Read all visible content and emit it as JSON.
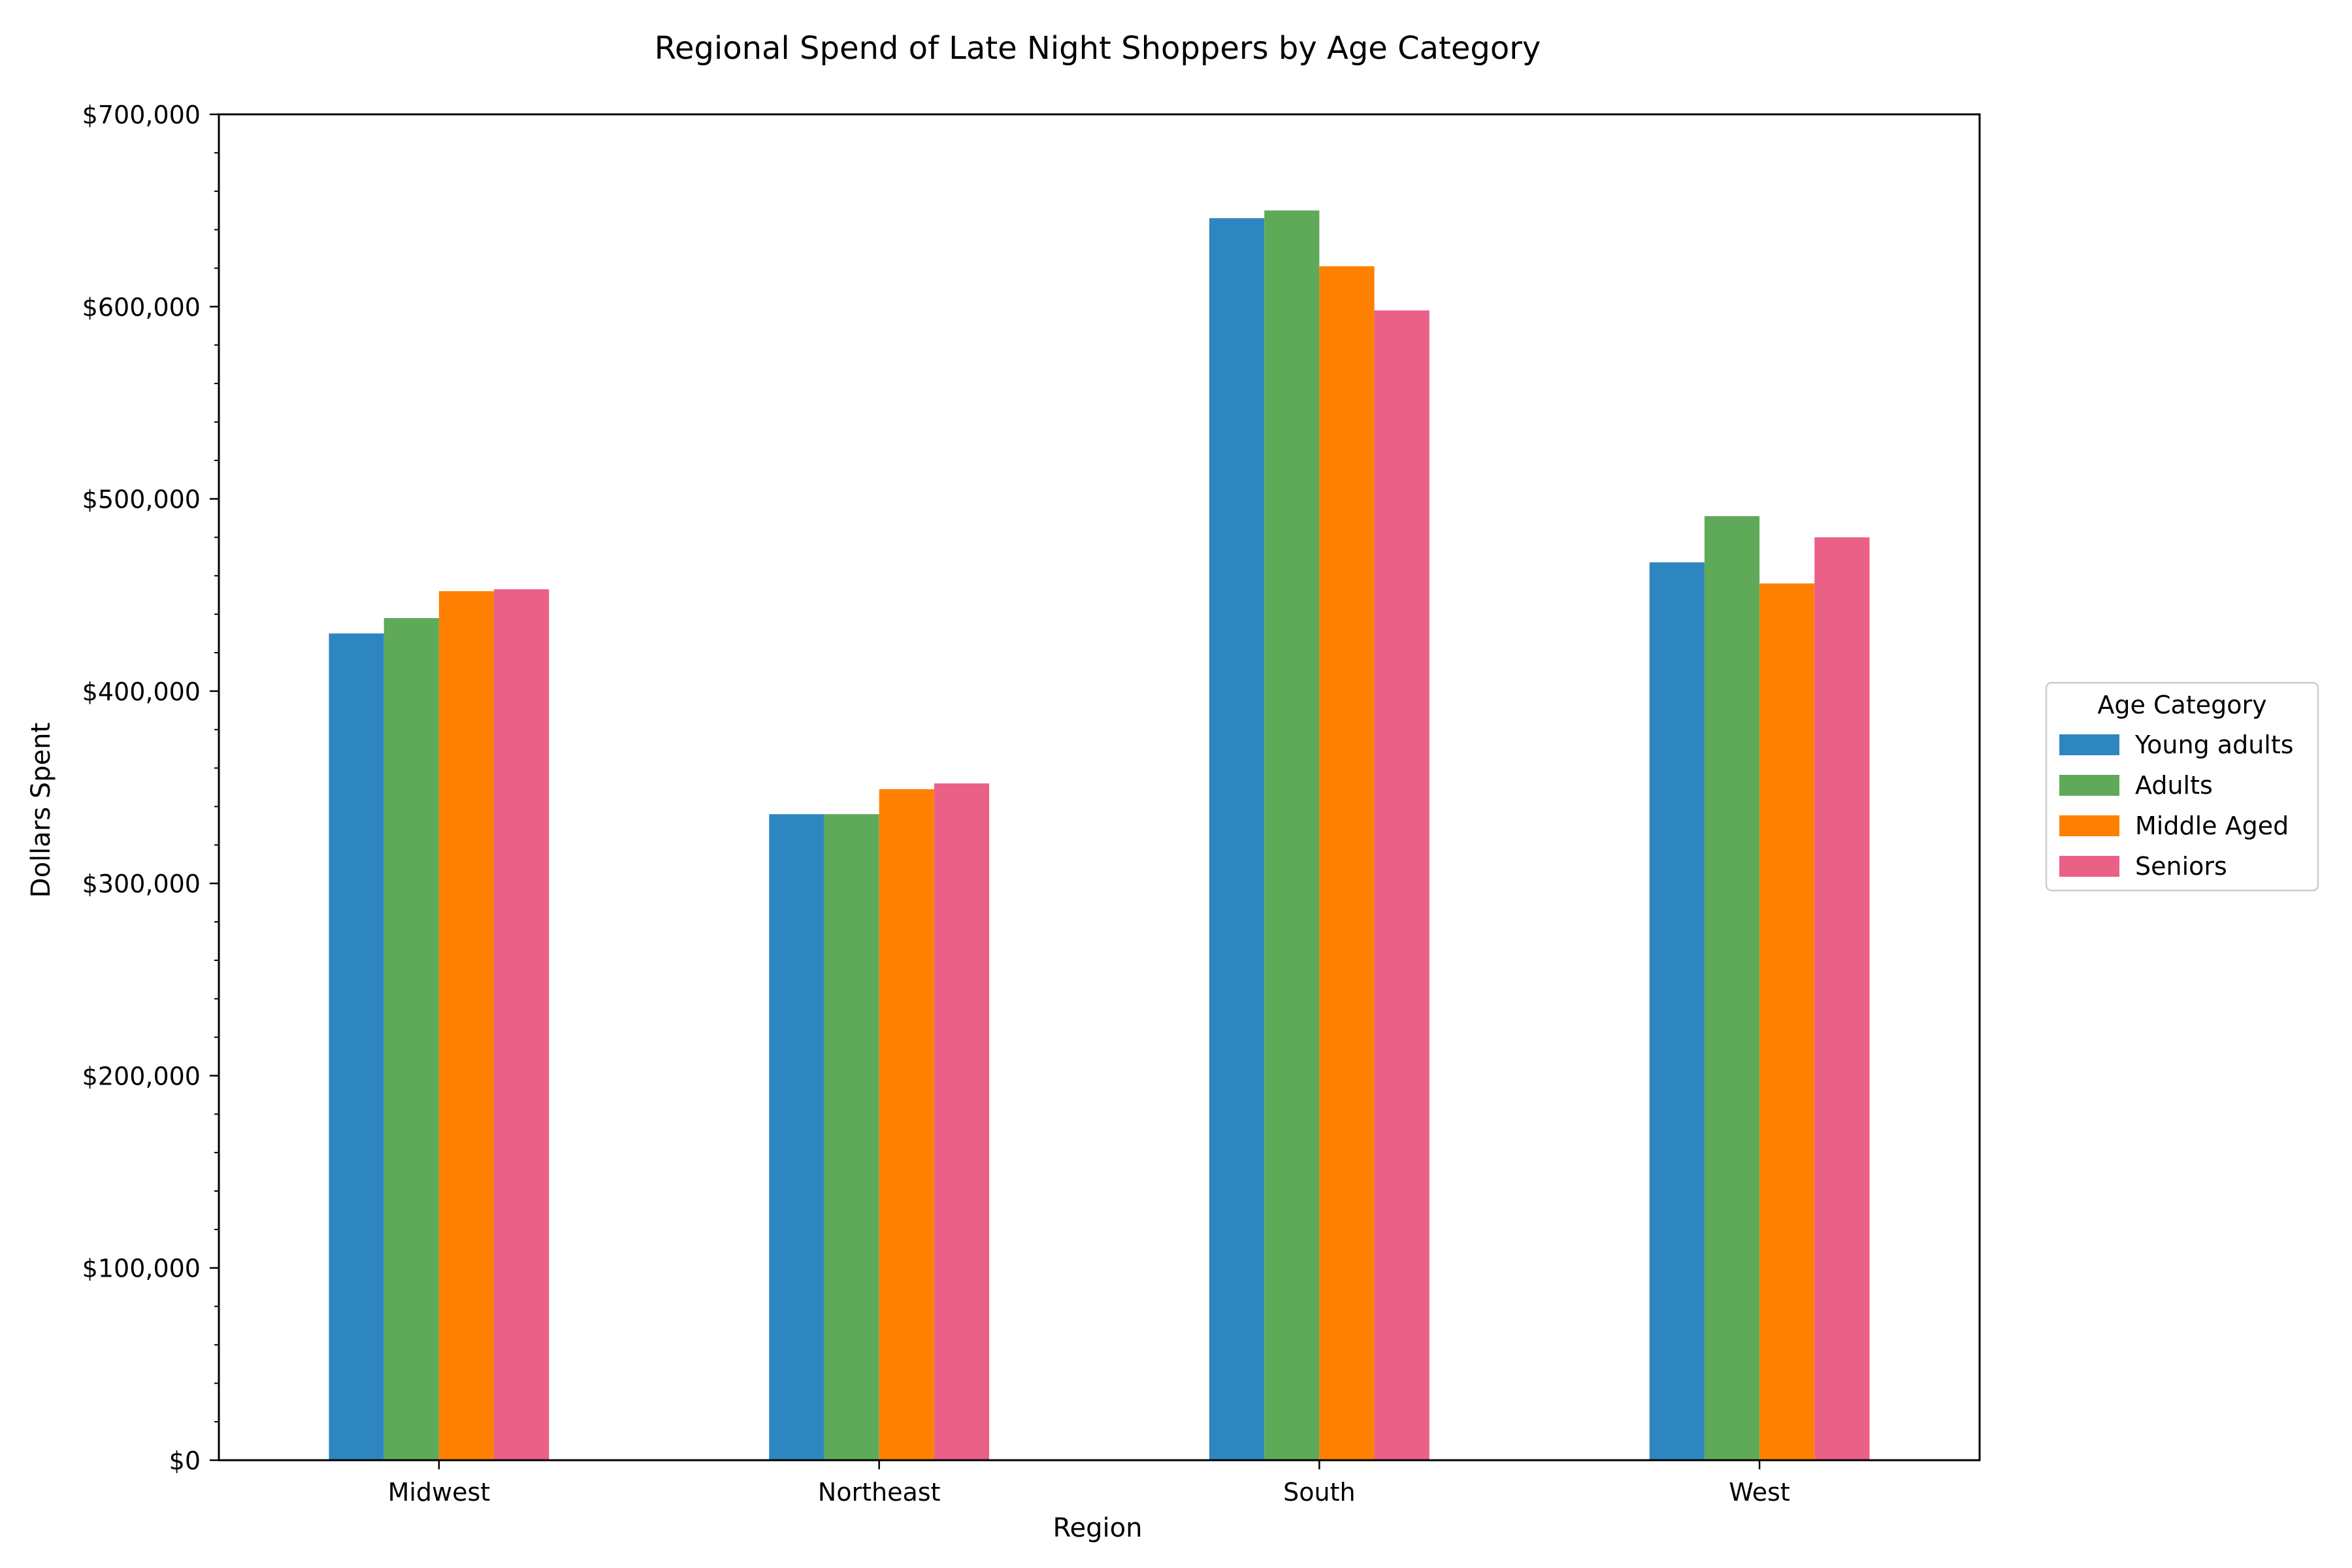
{
  "chart_data": {
    "type": "bar",
    "title": "Regional Spend of Late Night Shoppers by Age Category",
    "xlabel": "Region",
    "ylabel": "Dollars Spent",
    "categories": [
      "Midwest",
      "Northeast",
      "South",
      "West"
    ],
    "ylim": [
      0,
      700000
    ],
    "y_ticks": [
      0,
      100000,
      200000,
      300000,
      400000,
      500000,
      600000,
      700000
    ],
    "y_tick_labels": [
      "$0",
      "$100,000",
      "$200,000",
      "$300,000",
      "$400,000",
      "$500,000",
      "$600,000",
      "$700,000"
    ],
    "grid": false,
    "legend": {
      "title": "Age Category",
      "placement": "right"
    },
    "series": [
      {
        "name": "Young adults",
        "color": "#2e86c1",
        "values": [
          430000,
          336000,
          646000,
          467000
        ]
      },
      {
        "name": "Adults",
        "color": "#5faa58",
        "values": [
          438000,
          336000,
          650000,
          491000
        ]
      },
      {
        "name": "Middle Aged",
        "color": "#ff8000",
        "values": [
          452000,
          349000,
          621000,
          456000
        ]
      },
      {
        "name": "Seniors",
        "color": "#ea6087",
        "values": [
          453000,
          352000,
          598000,
          480000
        ]
      }
    ]
  }
}
